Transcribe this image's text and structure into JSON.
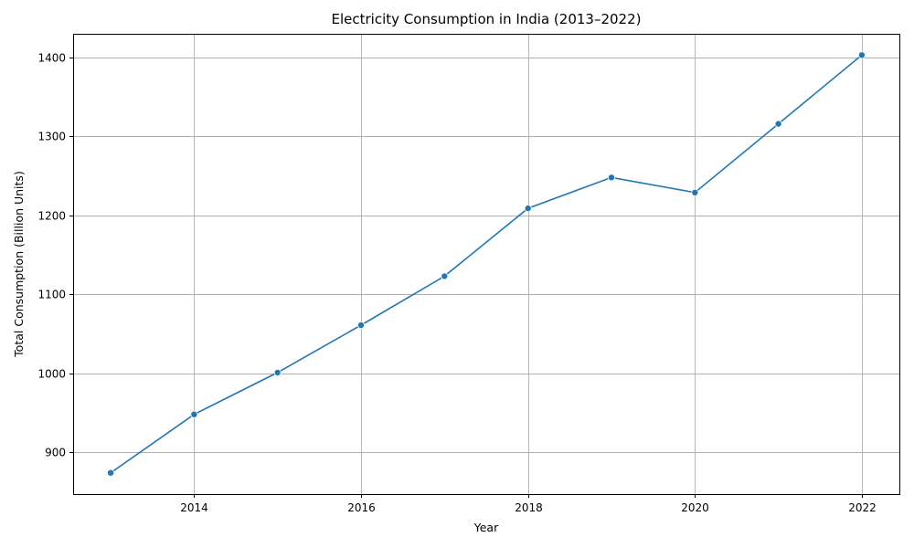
{
  "chart_data": {
    "type": "line",
    "title": "Electricity Consumption in India (2013–2022)",
    "xlabel": "Year",
    "ylabel": "Total Consumption (Billion Units)",
    "xlim": [
      2012.55,
      2022.45
    ],
    "ylim": [
      847,
      1430
    ],
    "xticks": [
      2014,
      2016,
      2018,
      2020,
      2022
    ],
    "yticks": [
      900,
      1000,
      1100,
      1200,
      1300,
      1400
    ],
    "grid": true,
    "color": "#1f77b4",
    "series": [
      {
        "x": [
          2013,
          2014,
          2015,
          2016,
          2017,
          2018,
          2019,
          2020,
          2021,
          2022
        ],
        "y": [
          874,
          948,
          1001,
          1061,
          1123,
          1209,
          1248,
          1229,
          1316,
          1403
        ]
      }
    ]
  }
}
